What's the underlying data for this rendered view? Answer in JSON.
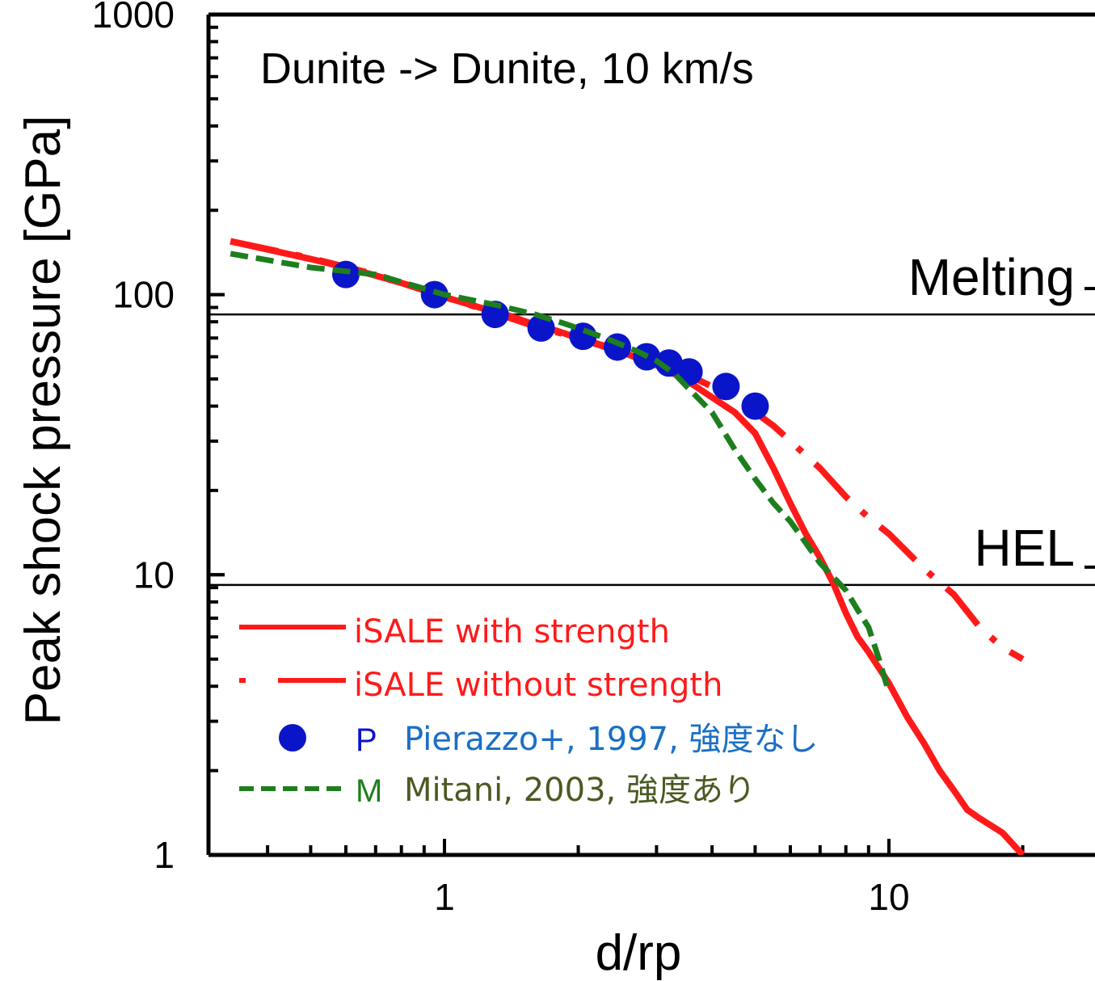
{
  "chart_data": {
    "type": "line",
    "title": "Dunite -> Dunite, 10 km/s",
    "xlabel": "d/rp",
    "ylabel": "Peak shock pressure [GPa]",
    "xscale": "log",
    "yscale": "log",
    "xlim": [
      0.33,
      28
    ],
    "ylim": [
      1,
      1000
    ],
    "x_tick_labels": [
      "1",
      "10"
    ],
    "y_tick_labels": [
      "1",
      "10",
      "100",
      "1000"
    ],
    "grid": false,
    "legend_position": "bottom-left",
    "reference_lines": [
      {
        "label": "Melting",
        "y": 85
      },
      {
        "label": "HEL",
        "y": 9.2
      }
    ],
    "series": [
      {
        "name": "iSALE with strength",
        "style": "solid",
        "color": "#ff1a1a",
        "x": [
          0.33,
          0.4,
          0.5,
          0.6,
          0.7,
          0.8,
          0.9,
          1.0,
          1.2,
          1.4,
          1.6,
          1.8,
          2.0,
          2.3,
          2.6,
          3.0,
          3.3,
          3.6,
          4.0,
          4.5,
          5.0,
          5.5,
          6.0,
          6.5,
          7.0,
          7.5,
          8.0,
          8.5,
          9.0,
          10.0,
          11.0,
          12.0,
          13.0,
          14.0,
          15.0,
          16.0,
          18.0,
          20.0
        ],
        "y": [
          155,
          145,
          134,
          125,
          117,
          110,
          104,
          98,
          90,
          84,
          78,
          74,
          70,
          65,
          61,
          56,
          52,
          48,
          43,
          38,
          32,
          24,
          18,
          14,
          11.5,
          9.3,
          7.3,
          6.0,
          5.3,
          4.1,
          3.1,
          2.5,
          2.0,
          1.7,
          1.45,
          1.35,
          1.2,
          1.0
        ]
      },
      {
        "name": "iSALE without strength",
        "style": "dash-dot",
        "color": "#ff1a1a",
        "x": [
          0.33,
          0.5,
          0.7,
          1.0,
          1.3,
          1.6,
          2.0,
          2.5,
          3.0,
          3.5,
          4.0,
          4.5,
          5.0,
          5.5,
          6.0,
          7.0,
          8.0,
          9.0,
          10.0,
          12.0,
          14.0,
          16.0,
          18.0,
          20.0
        ],
        "y": [
          155,
          135,
          118,
          98,
          86,
          77,
          70,
          63,
          57,
          52,
          47,
          43,
          38,
          34,
          30,
          24,
          19,
          16,
          14,
          10.5,
          8.5,
          6.5,
          5.5,
          5.0
        ]
      },
      {
        "name": "Pierazzo+, 1997, 強度なし",
        "marker_label": "P",
        "style": "markers",
        "color": "#0a14c8",
        "x": [
          0.6,
          0.95,
          1.3,
          1.65,
          2.05,
          2.45,
          2.85,
          3.2,
          3.55,
          4.3,
          5.0
        ],
        "y": [
          118,
          100,
          85,
          76,
          71,
          65,
          60,
          57,
          53,
          47,
          40
        ]
      },
      {
        "name": "Mitani, 2003, 強度あり",
        "marker_label": "M",
        "style": "dashed",
        "color": "#1e7e1e",
        "x": [
          0.33,
          0.5,
          0.7,
          1.0,
          1.3,
          1.6,
          1.9,
          2.3,
          2.7,
          3.0,
          3.3,
          3.6,
          4.0,
          4.5,
          5.0,
          5.5,
          6.0,
          6.5,
          7.0,
          7.5,
          8.0,
          8.5,
          9.0,
          9.5,
          10.0
        ],
        "y": [
          140,
          125,
          118,
          100,
          92,
          85,
          78,
          70,
          63,
          58,
          52,
          45,
          38,
          28,
          22,
          18,
          15.5,
          13,
          11,
          9.8,
          8.8,
          7.5,
          6.5,
          5.0,
          3.8
        ]
      }
    ],
    "legend": [
      {
        "label": "iSALE with strength",
        "text_color": "#ff1a1a"
      },
      {
        "label": "iSALE without strength",
        "text_color": "#ff1a1a"
      },
      {
        "label": "Pierazzo+, 1997, 強度なし",
        "marker_label": "P",
        "text_color": "#1a6fc4"
      },
      {
        "label": "Mitani, 2003, 強度あり",
        "marker_label": "M",
        "text_color": "#4a5a22"
      }
    ]
  }
}
